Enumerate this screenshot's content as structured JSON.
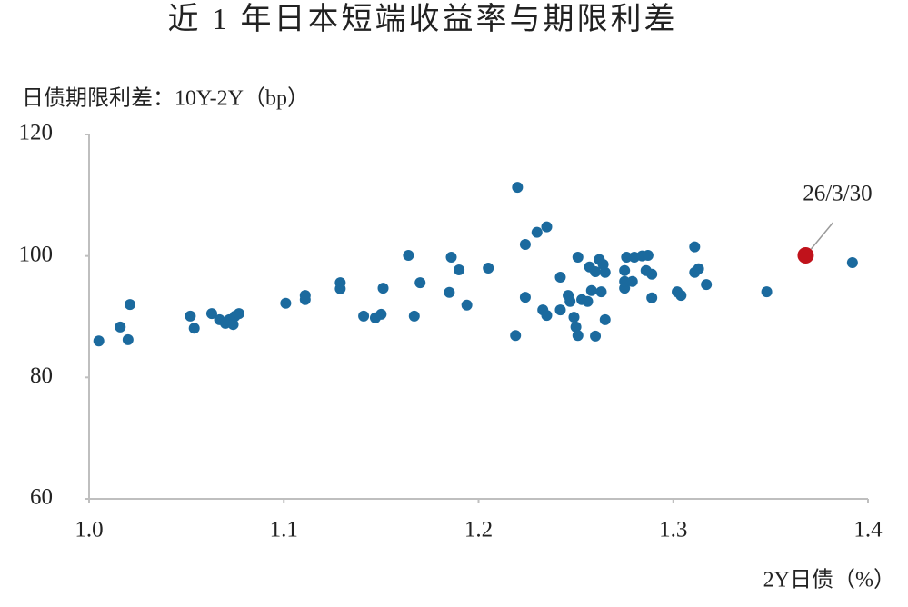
{
  "chart_data": {
    "type": "scatter",
    "title": "近 1 年日本短端收益率与期限利差",
    "y_label": "日债期限利差：10Y-2Y（bp）",
    "x_label": "2Y日债（%）",
    "xlim": [
      1.0,
      1.4
    ],
    "ylim": [
      60,
      120
    ],
    "xticks": [
      {
        "value": 1.0,
        "label": "1.0"
      },
      1.1,
      1.2,
      1.3,
      1.4
    ],
    "yticks": [
      60,
      80,
      100,
      120
    ],
    "color": "#1b6a9e",
    "x": [
      1.005,
      1.016,
      1.02,
      1.021,
      1.052,
      1.054,
      1.063,
      1.067,
      1.07,
      1.072,
      1.074,
      1.075,
      1.077,
      1.101,
      1.111,
      1.111,
      1.129,
      1.129,
      1.141,
      1.147,
      1.15,
      1.151,
      1.164,
      1.167,
      1.17,
      1.185,
      1.186,
      1.19,
      1.194,
      1.205,
      1.219,
      1.22,
      1.224,
      1.224,
      1.23,
      1.235,
      1.233,
      1.235,
      1.242,
      1.242,
      1.246,
      1.247,
      1.249,
      1.25,
      1.251,
      1.251,
      1.253,
      1.256,
      1.257,
      1.258,
      1.26,
      1.26,
      1.262,
      1.263,
      1.264,
      1.265,
      1.265,
      1.275,
      1.275,
      1.275,
      1.276,
      1.279,
      1.28,
      1.284,
      1.286,
      1.287,
      1.289,
      1.289,
      1.302,
      1.304,
      1.311,
      1.311,
      1.313,
      1.317,
      1.348,
      1.392
    ],
    "values": [
      86.0,
      88.3,
      86.2,
      92.0,
      90.1,
      88.1,
      90.5,
      89.5,
      88.9,
      89.5,
      88.7,
      90.1,
      90.5,
      92.2,
      92.8,
      93.5,
      95.6,
      94.6,
      90.1,
      89.8,
      90.4,
      94.7,
      100.1,
      90.1,
      95.6,
      94.0,
      99.8,
      97.7,
      91.9,
      98.0,
      86.9,
      111.3,
      101.9,
      93.2,
      103.9,
      104.8,
      91.1,
      90.2,
      96.5,
      91.1,
      93.5,
      92.5,
      89.9,
      88.3,
      86.9,
      99.8,
      92.8,
      92.5,
      98.2,
      94.3,
      86.8,
      97.4,
      99.4,
      94.1,
      98.6,
      97.3,
      89.5,
      94.7,
      97.6,
      95.8,
      99.8,
      95.8,
      99.8,
      100.0,
      97.6,
      100.1,
      93.1,
      97.0,
      94.1,
      93.5,
      101.5,
      97.3,
      97.9,
      95.3,
      94.1,
      98.9
    ],
    "highlight": {
      "x": 1.368,
      "value": 100.1,
      "label": "26/3/30",
      "color": "#c0121b"
    }
  }
}
